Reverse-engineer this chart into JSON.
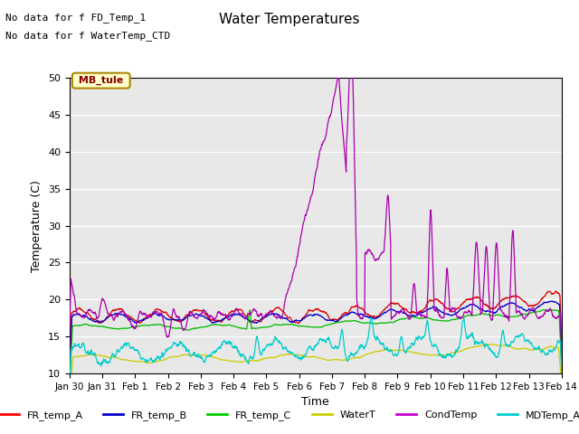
{
  "title": "Water Temperatures",
  "ylabel": "Temperature (C)",
  "xlabel": "Time",
  "ylim": [
    10,
    50
  ],
  "yticks": [
    10,
    15,
    20,
    25,
    30,
    35,
    40,
    45,
    50
  ],
  "bg_color": "#e8e8e8",
  "annotations": [
    "No data for f FD_Temp_1",
    "No data for f WaterTemp_CTD"
  ],
  "legend_entries": [
    "FR_temp_A",
    "FR_temp_B",
    "FR_temp_C",
    "WaterT",
    "CondTemp",
    "MDTemp_A"
  ],
  "legend_colors": [
    "#ff0000",
    "#0000cc",
    "#00cc00",
    "#cccc00",
    "#cc00cc",
    "#00cccc"
  ],
  "mb_tule_text": "MB_tule",
  "xtick_labels": [
    "Jan 30",
    "Jan 31",
    "Feb 1",
    "Feb 2",
    "Feb 3",
    "Feb 4",
    "Feb 5",
    "Feb 6",
    "Feb 7",
    "Feb 8",
    "Feb 9",
    "Feb 10",
    "Feb 11",
    "Feb 12",
    "Feb 13",
    "Feb 14"
  ],
  "n_days": 15,
  "line_colors": {
    "fr_a": "#dd0000",
    "fr_b": "#0000cc",
    "fr_c": "#00bb00",
    "water_t": "#cccc00",
    "cond": "#aa00aa",
    "md": "#00cccc"
  }
}
